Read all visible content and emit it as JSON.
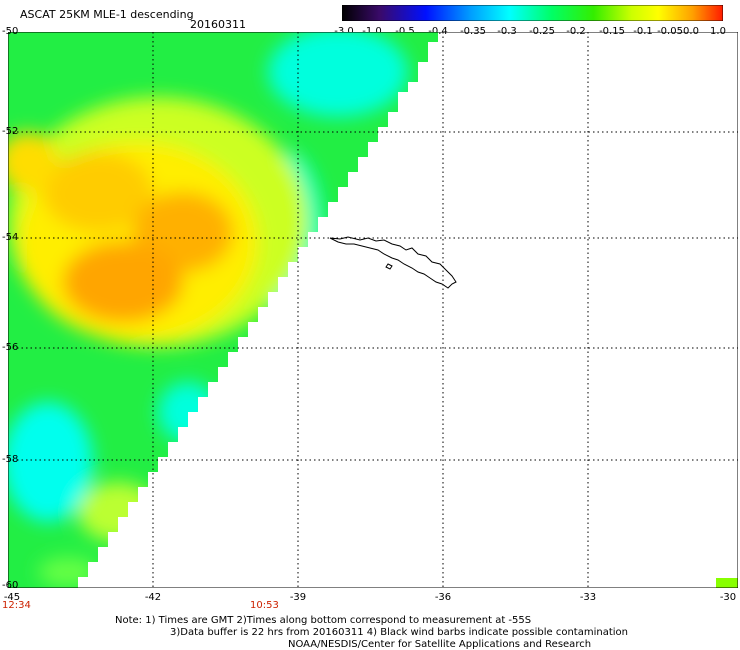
{
  "header": {
    "title": "ASCAT 25KM MLE-1 descending",
    "date": "20160311"
  },
  "colorbar": {
    "labels": [
      "-3.0",
      "-1.0",
      "-0.5",
      "-0.4",
      "-0.35",
      "-0.3",
      "-0.25",
      "-0.2",
      "-0.15",
      "-0.1",
      "-0.05",
      "0.0",
      "1.0"
    ],
    "colors": [
      "#2a0a2a",
      "#4b0082",
      "#0000ff",
      "#0060ff",
      "#00b0ff",
      "#00ffff",
      "#00ff99",
      "#00ee00",
      "#66ff00",
      "#ccff00",
      "#ffff00",
      "#ffaa00",
      "#ff3300"
    ]
  },
  "map": {
    "lat_labels": [
      "-50",
      "-52",
      "-54",
      "-56",
      "-58",
      "-60"
    ],
    "lon_labels": [
      "-45",
      "-42",
      "-39",
      "-36",
      "-33",
      "-30"
    ],
    "time_left": "12:34",
    "time_mid": "10:53",
    "swath_colors": {
      "orange": "#ffa500",
      "yellow": "#ffff00",
      "lime": "#aaff00",
      "green": "#00ee44",
      "cyan": "#00ffee"
    }
  },
  "footer": {
    "note1": "Note: 1) Times are GMT 2)Times along bottom correspond to measurement at -55S",
    "note2": "3)Data buffer is 22 hrs from 20160311 4) Black wind barbs indicate possible contamination",
    "credit": "NOAA/NESDIS/Center for Satellite Applications and Research"
  }
}
